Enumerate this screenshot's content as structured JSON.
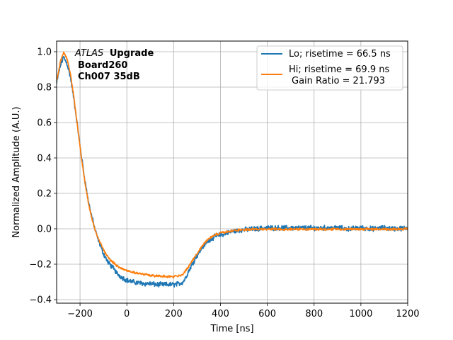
{
  "chart_data": {
    "type": "line",
    "xlabel": "Time [ns]",
    "ylabel": "Normalized Amplitude (A.U.)",
    "xlim": [
      -300,
      1200
    ],
    "ylim": [
      -0.42,
      1.06
    ],
    "xticks": [
      -200,
      0,
      200,
      400,
      600,
      800,
      1000,
      1200
    ],
    "xtick_labels": [
      "−200",
      "0",
      "200",
      "400",
      "600",
      "800",
      "1000",
      "1200"
    ],
    "yticks": [
      -0.4,
      -0.2,
      0.0,
      0.2,
      0.4,
      0.6,
      0.8,
      1.0
    ],
    "ytick_labels": [
      "−0.4",
      "−0.2",
      "0.0",
      "0.2",
      "0.4",
      "0.6",
      "0.8",
      "1.0"
    ],
    "grid": true,
    "legend_position": "top-right",
    "annotation": {
      "italic": "ATLAS",
      "bold": "Upgrade",
      "line2": "Board260",
      "line3": "Ch007 35dB"
    },
    "series": [
      {
        "name": "Lo; risetime = 66.5 ns",
        "color": "#1f77b4",
        "noise": 0.011,
        "x": [
          -300,
          -285,
          -270,
          -255,
          -240,
          -225,
          -210,
          -195,
          -180,
          -165,
          -150,
          -135,
          -120,
          -100,
          -80,
          -60,
          -40,
          -20,
          0,
          25,
          50,
          75,
          100,
          125,
          150,
          175,
          200,
          225,
          240,
          250,
          260,
          275,
          300,
          325,
          350,
          375,
          400,
          425,
          450,
          475,
          500,
          550,
          600,
          650,
          700,
          750,
          800,
          850,
          900,
          950,
          1000,
          1050,
          1100,
          1150,
          1200
        ],
        "y": [
          0.82,
          0.92,
          0.97,
          0.93,
          0.85,
          0.72,
          0.57,
          0.42,
          0.28,
          0.16,
          0.07,
          -0.01,
          -0.07,
          -0.14,
          -0.19,
          -0.22,
          -0.255,
          -0.275,
          -0.29,
          -0.3,
          -0.305,
          -0.31,
          -0.31,
          -0.315,
          -0.315,
          -0.315,
          -0.315,
          -0.31,
          -0.3,
          -0.28,
          -0.25,
          -0.21,
          -0.15,
          -0.1,
          -0.065,
          -0.045,
          -0.035,
          -0.025,
          -0.015,
          -0.01,
          -0.005,
          0.0,
          0.005,
          0.005,
          0.005,
          0.005,
          0.005,
          0.005,
          0.005,
          0.0,
          0.005,
          0.0,
          0.005,
          0.0,
          0.005
        ]
      },
      {
        "name": "Hi; risetime = 69.9 ns",
        "name_line2": "Gain Ratio = 21.793",
        "color": "#ff7f0e",
        "noise": 0.005,
        "x": [
          -300,
          -285,
          -270,
          -255,
          -240,
          -225,
          -210,
          -195,
          -180,
          -165,
          -150,
          -135,
          -120,
          -100,
          -80,
          -60,
          -40,
          -20,
          0,
          25,
          50,
          75,
          100,
          125,
          150,
          175,
          200,
          225,
          240,
          250,
          260,
          275,
          300,
          325,
          350,
          375,
          400,
          425,
          450,
          475,
          500,
          550,
          600,
          650,
          700,
          750,
          800,
          850,
          900,
          950,
          1000,
          1050,
          1100,
          1150,
          1200
        ],
        "y": [
          0.83,
          0.94,
          0.995,
          0.96,
          0.87,
          0.73,
          0.57,
          0.41,
          0.27,
          0.15,
          0.06,
          -0.01,
          -0.06,
          -0.12,
          -0.16,
          -0.19,
          -0.21,
          -0.225,
          -0.235,
          -0.245,
          -0.252,
          -0.258,
          -0.262,
          -0.265,
          -0.268,
          -0.27,
          -0.27,
          -0.265,
          -0.255,
          -0.24,
          -0.22,
          -0.19,
          -0.14,
          -0.09,
          -0.055,
          -0.035,
          -0.025,
          -0.018,
          -0.012,
          -0.008,
          -0.005,
          -0.003,
          -0.002,
          -0.002,
          -0.002,
          -0.002,
          -0.002,
          -0.002,
          -0.002,
          -0.002,
          -0.002,
          -0.002,
          -0.002,
          -0.002,
          -0.002
        ]
      }
    ]
  }
}
